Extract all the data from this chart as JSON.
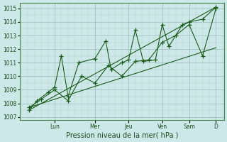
{
  "xlabel": "Pression niveau de la mer( hPa )",
  "bg_color": "#cce8e8",
  "grid_major_color": "#99bbbb",
  "grid_minor_color": "#bbcccc",
  "line_color": "#1a5c1a",
  "ylim": [
    1006.8,
    1015.4
  ],
  "xlim": [
    -0.3,
    7.3
  ],
  "yticks": [
    1007,
    1008,
    1009,
    1010,
    1011,
    1012,
    1013,
    1014,
    1015
  ],
  "day_labels": [
    "Lun",
    "Mer",
    "Jeu",
    "Ven",
    "Sam",
    "D"
  ],
  "day_positions": [
    1.0,
    2.5,
    3.75,
    5.0,
    6.0,
    7.0
  ],
  "series1_x": [
    0.05,
    0.35,
    0.75,
    1.0,
    1.25,
    1.5,
    1.9,
    2.5,
    2.9,
    3.1,
    3.5,
    3.75,
    4.0,
    4.3,
    4.75,
    5.0,
    5.25,
    5.75,
    6.0,
    6.5,
    7.0
  ],
  "series1_y": [
    1007.5,
    1008.2,
    1008.8,
    1009.2,
    1011.5,
    1008.5,
    1011.0,
    1011.3,
    1012.6,
    1010.5,
    1011.0,
    1011.2,
    1013.4,
    1011.1,
    1011.2,
    1013.8,
    1012.2,
    1013.8,
    1014.0,
    1014.2,
    1015.1
  ],
  "series2_x": [
    0.05,
    0.5,
    1.0,
    1.5,
    2.0,
    2.5,
    3.0,
    3.5,
    4.0,
    4.5,
    5.0,
    5.5,
    6.0,
    6.5,
    7.0
  ],
  "series2_y": [
    1007.7,
    1008.3,
    1009.0,
    1008.2,
    1010.0,
    1009.5,
    1010.8,
    1010.0,
    1011.1,
    1011.2,
    1012.5,
    1013.0,
    1013.8,
    1011.5,
    1015.0
  ],
  "trend1_x": [
    0.05,
    7.0
  ],
  "trend1_y": [
    1007.5,
    1015.1
  ],
  "trend2_x": [
    0.05,
    7.0
  ],
  "trend2_y": [
    1007.7,
    1012.1
  ]
}
